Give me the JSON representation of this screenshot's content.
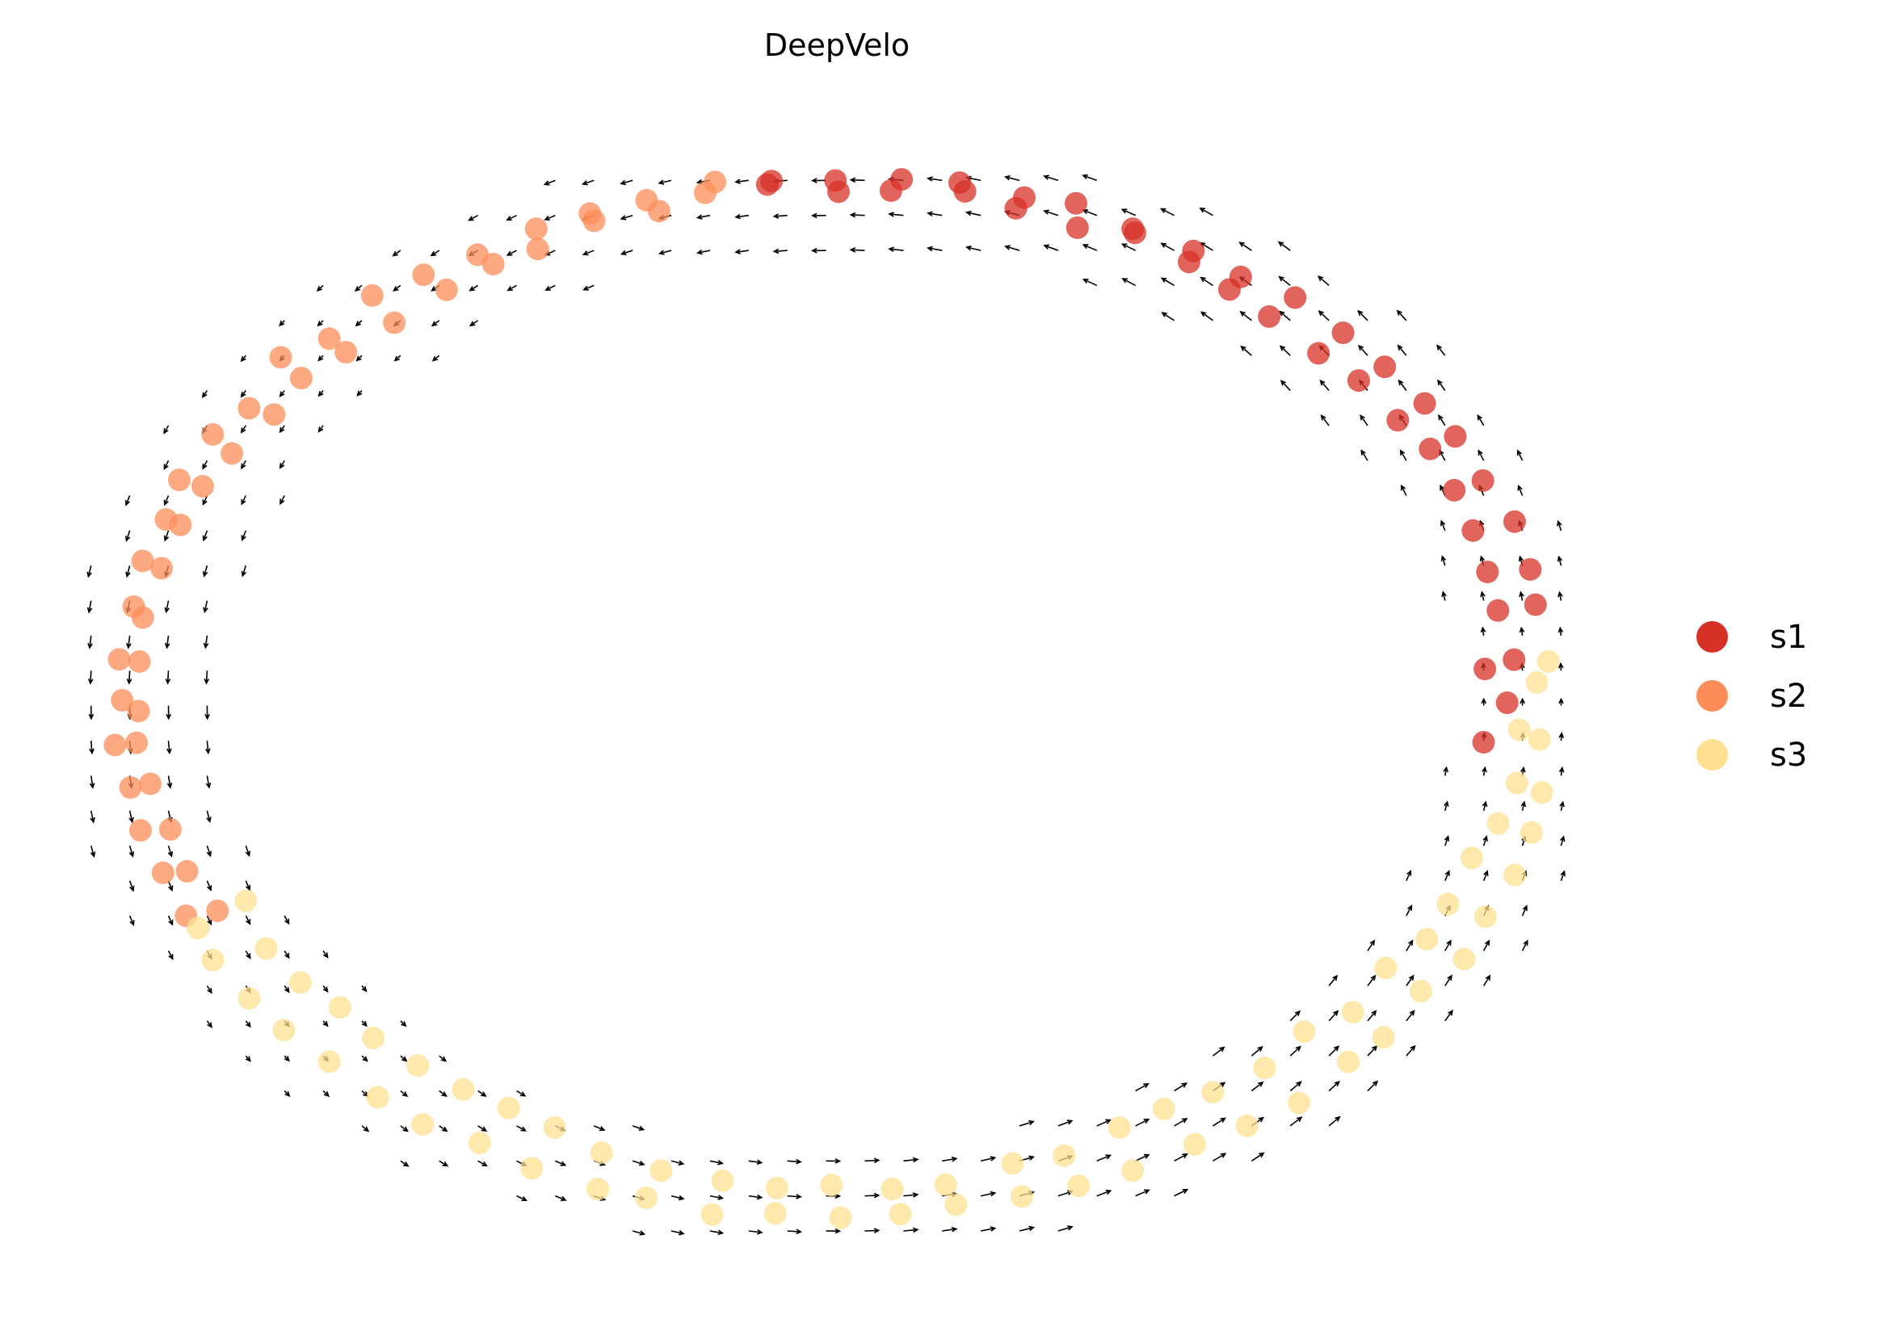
{
  "chart_data": {
    "type": "scatter",
    "title": "DeepVelo",
    "xlabel": "",
    "ylabel": "",
    "xlim": [
      -10.6,
      10.6
    ],
    "ylim": [
      -7.9,
      7.9
    ],
    "grid": false,
    "axes_visible": false,
    "legend_position": "right",
    "arrow_direction": "counterclockwise",
    "series": [
      {
        "name": "s1",
        "color": "#d73027",
        "points": [
          [
            -0.9,
            7.4
          ],
          [
            -0.9,
            7.3
          ],
          [
            0,
            7.4
          ],
          [
            0.1,
            7.3
          ],
          [
            0.9,
            7.4
          ],
          [
            0.8,
            7.3
          ],
          [
            1.7,
            7.3
          ],
          [
            1.8,
            7.2
          ],
          [
            2.6,
            7.1
          ],
          [
            2.5,
            7.0
          ],
          [
            3.4,
            7.0
          ],
          [
            3.3,
            6.8
          ],
          [
            4.2,
            6.7
          ],
          [
            4.1,
            6.6
          ],
          [
            5.0,
            6.4
          ],
          [
            4.9,
            6.2
          ],
          [
            5.7,
            6.1
          ],
          [
            5.5,
            5.8
          ],
          [
            6.4,
            5.7
          ],
          [
            6.1,
            5.5
          ],
          [
            7.1,
            5.2
          ],
          [
            6.8,
            5.0
          ],
          [
            7.7,
            4.8
          ],
          [
            7.3,
            4.5
          ],
          [
            8.2,
            4.2
          ],
          [
            7.8,
            4.0
          ],
          [
            8.7,
            3.7
          ],
          [
            8.3,
            3.5
          ],
          [
            9.1,
            3.1
          ],
          [
            8.6,
            3.0
          ],
          [
            9.4,
            2.5
          ],
          [
            8.9,
            2.4
          ],
          [
            9.7,
            1.9
          ],
          [
            9.1,
            1.8
          ],
          [
            9.8,
            1.3
          ],
          [
            9.2,
            1.2
          ],
          [
            9.5,
            0.6
          ],
          [
            9.0,
            0.5
          ],
          [
            9.3,
            0.0
          ],
          [
            9.0,
            -0.6
          ]
        ]
      },
      {
        "name": "s2",
        "color": "#fc8d59",
        "points": [
          [
            -1.7,
            7.3
          ],
          [
            -1.8,
            7.2
          ],
          [
            -2.6,
            7.1
          ],
          [
            -2.5,
            7.0
          ],
          [
            -3.4,
            7.0
          ],
          [
            -3.3,
            6.8
          ],
          [
            -4.2,
            6.7
          ],
          [
            -4.1,
            6.5
          ],
          [
            -5.0,
            6.4
          ],
          [
            -4.8,
            6.2
          ],
          [
            -5.7,
            6.1
          ],
          [
            -5.5,
            5.8
          ],
          [
            -6.4,
            5.7
          ],
          [
            -6.2,
            5.4
          ],
          [
            -7.1,
            5.2
          ],
          [
            -6.8,
            5.0
          ],
          [
            -7.7,
            4.8
          ],
          [
            -7.4,
            4.5
          ],
          [
            -8.2,
            4.2
          ],
          [
            -7.9,
            4.0
          ],
          [
            -8.7,
            3.7
          ],
          [
            -8.4,
            3.5
          ],
          [
            -9.1,
            3.1
          ],
          [
            -8.8,
            3.0
          ],
          [
            -9.4,
            2.5
          ],
          [
            -9.1,
            2.4
          ],
          [
            -9.7,
            1.9
          ],
          [
            -9.4,
            1.8
          ],
          [
            -9.8,
            1.3
          ],
          [
            -9.6,
            1.2
          ],
          [
            -10.0,
            0.6
          ],
          [
            -9.7,
            0.6
          ],
          [
            -10.0,
            0
          ],
          [
            -9.7,
            -0.2
          ],
          [
            -10.0,
            -0.6
          ],
          [
            -9.7,
            -0.7
          ],
          [
            -9.8,
            -1.3
          ],
          [
            -9.5,
            -1.2
          ],
          [
            -9.7,
            -1.9
          ],
          [
            -9.3,
            -1.8
          ],
          [
            -9.4,
            -2.5
          ],
          [
            -9.0,
            -2.4
          ],
          [
            -9.1,
            -3.1
          ],
          [
            -8.7,
            -3.0
          ]
        ]
      },
      {
        "name": "s3",
        "color": "#fee090",
        "points": [
          [
            -8.9,
            -3.2
          ],
          [
            -8.3,
            -2.9
          ],
          [
            -8.7,
            -3.7
          ],
          [
            -8.0,
            -3.5
          ],
          [
            -8.2,
            -4.2
          ],
          [
            -7.5,
            -4.0
          ],
          [
            -7.7,
            -4.8
          ],
          [
            -7.0,
            -4.4
          ],
          [
            -7.1,
            -5.2
          ],
          [
            -6.5,
            -4.8
          ],
          [
            -6.4,
            -5.7
          ],
          [
            -5.9,
            -5.2
          ],
          [
            -5.7,
            -6.1
          ],
          [
            -5.2,
            -5.5
          ],
          [
            -5.0,
            -6.4
          ],
          [
            -4.6,
            -5.9
          ],
          [
            -4.2,
            -6.7
          ],
          [
            -3.9,
            -6.2
          ],
          [
            -3.4,
            -7.0
          ],
          [
            -3.2,
            -6.5
          ],
          [
            -2.6,
            -7.1
          ],
          [
            -2.4,
            -6.7
          ],
          [
            -1.7,
            -7.3
          ],
          [
            -1.6,
            -6.9
          ],
          [
            -0.9,
            -7.4
          ],
          [
            -0.8,
            -7.0
          ],
          [
            0,
            -7.4
          ],
          [
            0,
            -7.0
          ],
          [
            0.9,
            -7.4
          ],
          [
            0.8,
            -7.0
          ],
          [
            1.7,
            -7.3
          ],
          [
            1.6,
            -6.9
          ],
          [
            2.6,
            -7.1
          ],
          [
            2.4,
            -6.7
          ],
          [
            3.4,
            -7.0
          ],
          [
            3.2,
            -6.6
          ],
          [
            4.2,
            -6.7
          ],
          [
            3.9,
            -6.2
          ],
          [
            5.0,
            -6.4
          ],
          [
            4.6,
            -5.9
          ],
          [
            5.7,
            -6.1
          ],
          [
            5.3,
            -5.6
          ],
          [
            6.4,
            -5.7
          ],
          [
            6.0,
            -5.2
          ],
          [
            7.1,
            -5.2
          ],
          [
            6.6,
            -4.8
          ],
          [
            7.7,
            -4.8
          ],
          [
            7.2,
            -4.4
          ],
          [
            8.2,
            -4.2
          ],
          [
            7.7,
            -3.9
          ],
          [
            8.7,
            -3.7
          ],
          [
            8.2,
            -3.4
          ],
          [
            9.1,
            -3.1
          ],
          [
            8.6,
            -2.9
          ],
          [
            9.4,
            -2.5
          ],
          [
            8.9,
            -2.3
          ],
          [
            9.7,
            -1.9
          ],
          [
            9.3,
            -1.8
          ],
          [
            9.8,
            -1.3
          ],
          [
            9.5,
            -1.2
          ],
          [
            9.8,
            -0.6
          ],
          [
            9.6,
            -0.5
          ],
          [
            9.8,
            0.3
          ],
          [
            9.9,
            0.6
          ]
        ]
      }
    ]
  }
}
